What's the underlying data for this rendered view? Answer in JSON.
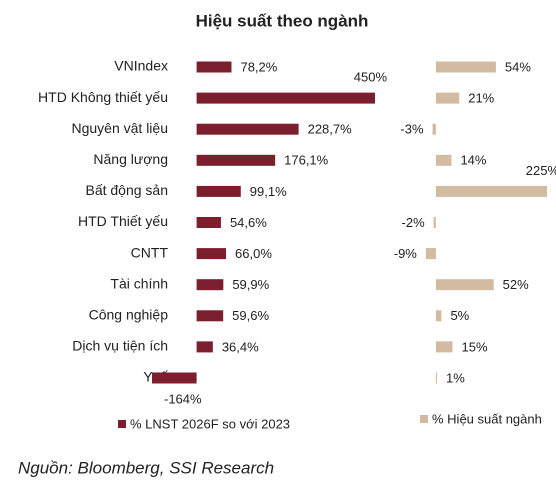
{
  "title": "Hiệu suất theo ngành",
  "source": "Nguồn: Bloomberg, SSI Research",
  "chart_data": [
    {
      "type": "bar",
      "orientation": "horizontal",
      "categories": [
        "VNIndex",
        "HTD Không thiết yếu",
        "Nguyên vật liệu",
        "Năng lượng",
        "Bất động sản",
        "HTD Thiết yếu",
        "CNTT",
        "Tài chính",
        "Công nghiệp",
        "Dịch vụ tiện ích",
        "Y tế"
      ],
      "xlim": [
        -100,
        400
      ],
      "series": [
        {
          "name": "% LNST 2026F so với 2023",
          "color": "#7b1f2e",
          "values": [
            78.2,
            450,
            228.7,
            176.1,
            99.1,
            54.6,
            66.0,
            59.9,
            59.6,
            36.4,
            -164
          ],
          "value_labels": [
            "78,2%",
            "450%",
            "228,7%",
            "176,1%",
            "99,1%",
            "54,6%",
            "66,0%",
            "59,9%",
            "59,6%",
            "36,4%",
            "-164%"
          ]
        }
      ]
    },
    {
      "type": "bar",
      "orientation": "horizontal",
      "xlim": [
        -35,
        100
      ],
      "series": [
        {
          "name": "% Hiệu suất ngành",
          "color": "#d3bba2",
          "values": [
            54,
            21,
            -3,
            14,
            225,
            -2,
            -9,
            52,
            5,
            15,
            1
          ],
          "value_labels": [
            "54%",
            "21%",
            "-3%",
            "14%",
            "225%",
            "-2%",
            "-9%",
            "52%",
            "5%",
            "15%",
            "1%"
          ]
        }
      ]
    }
  ]
}
